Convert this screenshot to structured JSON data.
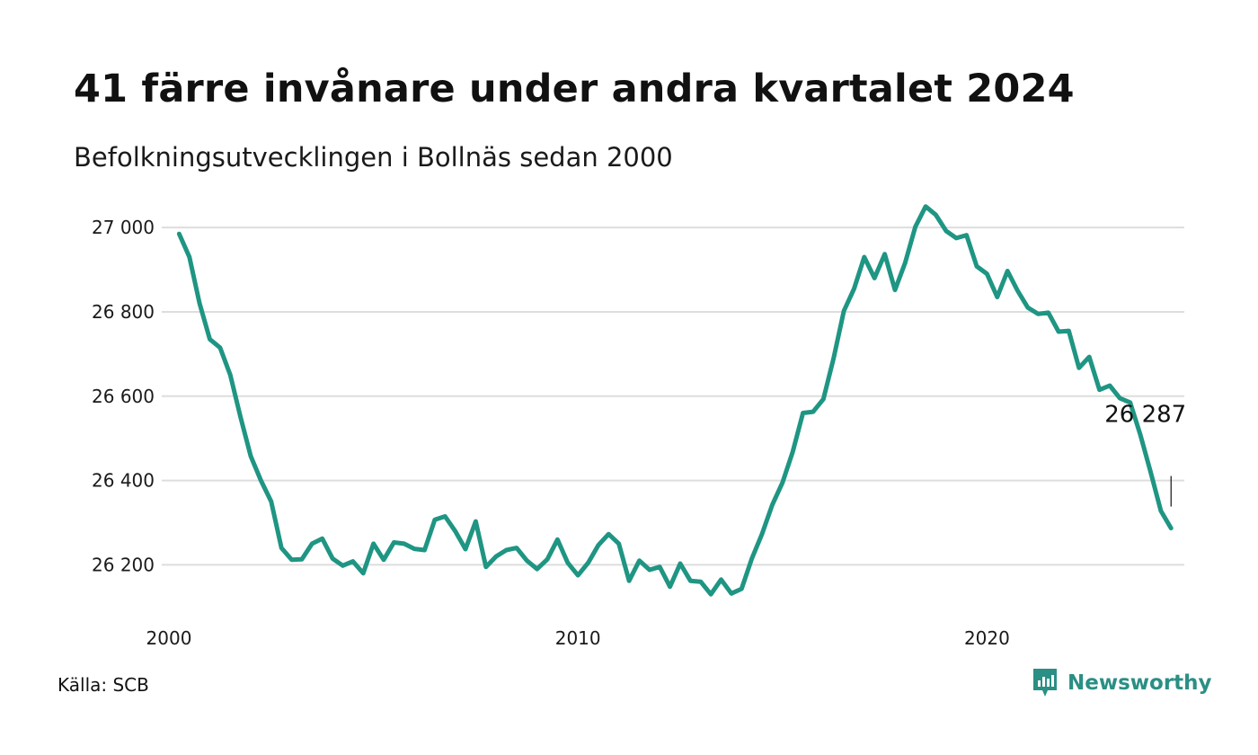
{
  "header": {
    "title": "41 färre invånare under andra kvartalet 2024",
    "subtitle": "Befolkningsutvecklingen i Bollnäs sedan 2000"
  },
  "footer": {
    "source": "Källa: SCB",
    "brand": "Newsworthy",
    "brand_icon": "newsworthy-logo-icon"
  },
  "colors": {
    "line": "#1f9583",
    "grid": "#dddddd",
    "brand": "#2a8f84"
  },
  "chart_data": {
    "type": "line",
    "title": "41 färre invånare under andra kvartalet 2024",
    "subtitle": "Befolkningsutvecklingen i Bollnäs sedan 2000",
    "xlabel": "",
    "ylabel": "",
    "grid": true,
    "xlim": [
      2000,
      2025
    ],
    "ylim": [
      26090,
      27060
    ],
    "y_ticks": [
      {
        "value": 26200,
        "label": "26 200"
      },
      {
        "value": 26400,
        "label": "26 400"
      },
      {
        "value": 26600,
        "label": "26 600"
      },
      {
        "value": 26800,
        "label": "26 800"
      },
      {
        "value": 27000,
        "label": "27 000"
      }
    ],
    "x_ticks": [
      {
        "value": 2000,
        "label": "2000"
      },
      {
        "value": 2010,
        "label": "2010"
      },
      {
        "value": 2020,
        "label": "2020"
      }
    ],
    "end_label": "26 287",
    "series": [
      {
        "values": [
          [
            2000.25,
            26985
          ],
          [
            2000.5,
            26930
          ],
          [
            2000.75,
            26820
          ],
          [
            2001.0,
            26735
          ],
          [
            2001.25,
            26715
          ],
          [
            2001.5,
            26650
          ],
          [
            2001.75,
            26550
          ],
          [
            2002.0,
            26458
          ],
          [
            2002.25,
            26400
          ],
          [
            2002.5,
            26350
          ],
          [
            2002.75,
            26240
          ],
          [
            2003.0,
            26212
          ],
          [
            2003.25,
            26213
          ],
          [
            2003.5,
            26250
          ],
          [
            2003.75,
            26262
          ],
          [
            2004.0,
            26215
          ],
          [
            2004.25,
            26198
          ],
          [
            2004.5,
            26208
          ],
          [
            2004.75,
            26180
          ],
          [
            2005.0,
            26250
          ],
          [
            2005.25,
            26212
          ],
          [
            2005.5,
            26253
          ],
          [
            2005.75,
            26250
          ],
          [
            2006.0,
            26238
          ],
          [
            2006.25,
            26235
          ],
          [
            2006.5,
            26307
          ],
          [
            2006.75,
            26315
          ],
          [
            2007.0,
            26280
          ],
          [
            2007.25,
            26237
          ],
          [
            2007.5,
            26303
          ],
          [
            2007.75,
            26195
          ],
          [
            2008.0,
            26220
          ],
          [
            2008.25,
            26235
          ],
          [
            2008.5,
            26240
          ],
          [
            2008.75,
            26210
          ],
          [
            2009.0,
            26190
          ],
          [
            2009.25,
            26213
          ],
          [
            2009.5,
            26260
          ],
          [
            2009.75,
            26205
          ],
          [
            2010.0,
            26175
          ],
          [
            2010.25,
            26205
          ],
          [
            2010.5,
            26247
          ],
          [
            2010.75,
            26273
          ],
          [
            2011.0,
            26250
          ],
          [
            2011.25,
            26162
          ],
          [
            2011.5,
            26210
          ],
          [
            2011.75,
            26188
          ],
          [
            2012.0,
            26195
          ],
          [
            2012.25,
            26148
          ],
          [
            2012.5,
            26203
          ],
          [
            2012.75,
            26162
          ],
          [
            2013.0,
            26160
          ],
          [
            2013.25,
            26130
          ],
          [
            2013.5,
            26165
          ],
          [
            2013.75,
            26132
          ],
          [
            2014.0,
            26143
          ],
          [
            2014.25,
            26215
          ],
          [
            2014.5,
            26273
          ],
          [
            2014.75,
            26342
          ],
          [
            2015.0,
            26395
          ],
          [
            2015.25,
            26468
          ],
          [
            2015.5,
            26560
          ],
          [
            2015.75,
            26563
          ],
          [
            2016.0,
            26593
          ],
          [
            2016.25,
            26690
          ],
          [
            2016.5,
            26802
          ],
          [
            2016.75,
            26855
          ],
          [
            2017.0,
            26930
          ],
          [
            2017.25,
            26880
          ],
          [
            2017.5,
            26937
          ],
          [
            2017.75,
            26852
          ],
          [
            2018.0,
            26917
          ],
          [
            2018.25,
            27002
          ],
          [
            2018.5,
            27050
          ],
          [
            2018.75,
            27030
          ],
          [
            2019.0,
            26992
          ],
          [
            2019.25,
            26975
          ],
          [
            2019.5,
            26982
          ],
          [
            2019.75,
            26908
          ],
          [
            2020.0,
            26890
          ],
          [
            2020.25,
            26835
          ],
          [
            2020.5,
            26897
          ],
          [
            2020.75,
            26850
          ],
          [
            2021.0,
            26810
          ],
          [
            2021.25,
            26795
          ],
          [
            2021.5,
            26798
          ],
          [
            2021.75,
            26753
          ],
          [
            2022.0,
            26755
          ],
          [
            2022.25,
            26667
          ],
          [
            2022.5,
            26693
          ],
          [
            2022.75,
            26615
          ],
          [
            2023.0,
            26625
          ],
          [
            2023.25,
            26595
          ],
          [
            2023.5,
            26585
          ],
          [
            2023.75,
            26508
          ],
          [
            2024.0,
            26420
          ],
          [
            2024.25,
            26328
          ],
          [
            2024.5,
            26287
          ]
        ]
      }
    ]
  }
}
